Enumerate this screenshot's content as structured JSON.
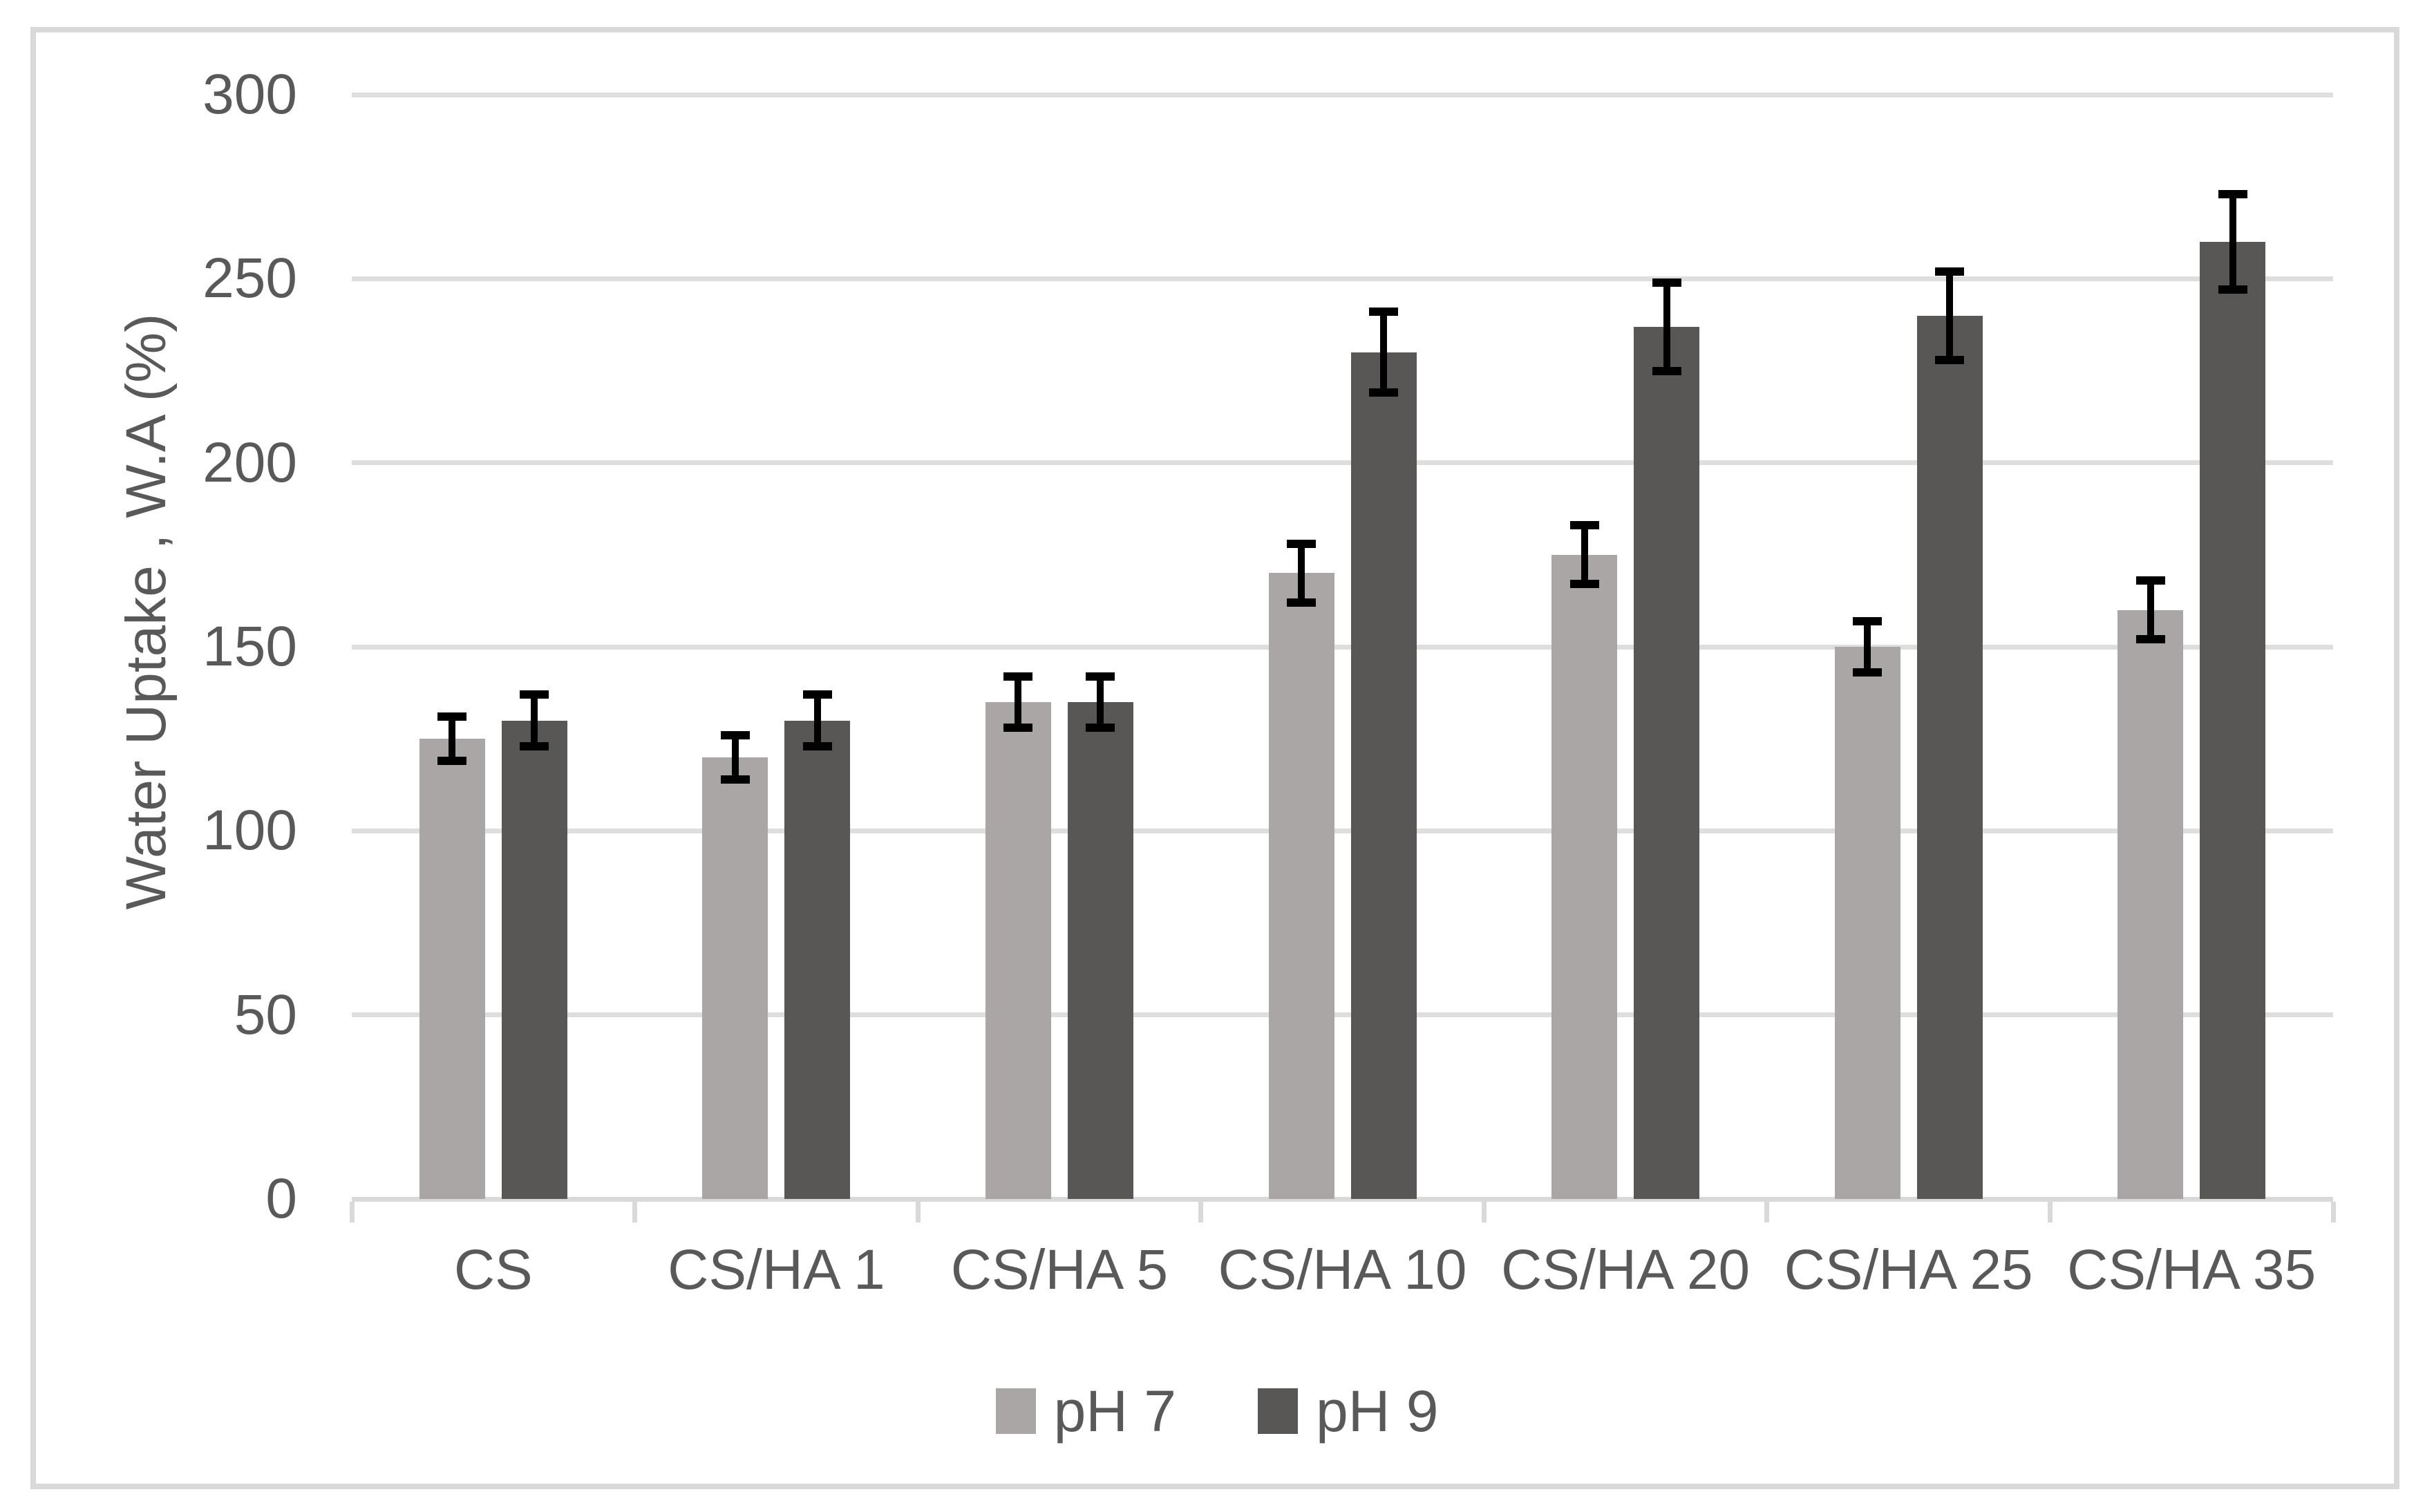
{
  "chart_data": {
    "type": "bar",
    "title": "",
    "xlabel": "",
    "ylabel": "Water Uptake , W.A (%)",
    "ylim": [
      0,
      300
    ],
    "ytick_step": 50,
    "grid": true,
    "legend_position": "bottom",
    "categories": [
      "CS",
      "CS/HA 1",
      "CS/HA 5",
      "CS/HA 10",
      "CS/HA 20",
      "CS/HA 25",
      "CS/HA 35"
    ],
    "series": [
      {
        "name": "pH 7",
        "color": "#aba6a6",
        "values": [
          125,
          120,
          135,
          170,
          175,
          150,
          160
        ],
        "errors": [
          6,
          6,
          7,
          8,
          8,
          7,
          8
        ]
      },
      {
        "name": "pH 9",
        "color": "#595656",
        "values": [
          130,
          130,
          135,
          230,
          237,
          240,
          260
        ],
        "errors": [
          7,
          7,
          7,
          11,
          12,
          12,
          13
        ]
      }
    ],
    "ytick_labels": [
      "0",
      "50",
      "100",
      "150",
      "200",
      "250",
      "300"
    ]
  },
  "colors": {
    "background": "#ffffff",
    "chart_border": "#d9d9d9",
    "gridline": "#dedede",
    "axis": "#d9d9d9",
    "text": "#595959",
    "error_bar": "#000000"
  }
}
